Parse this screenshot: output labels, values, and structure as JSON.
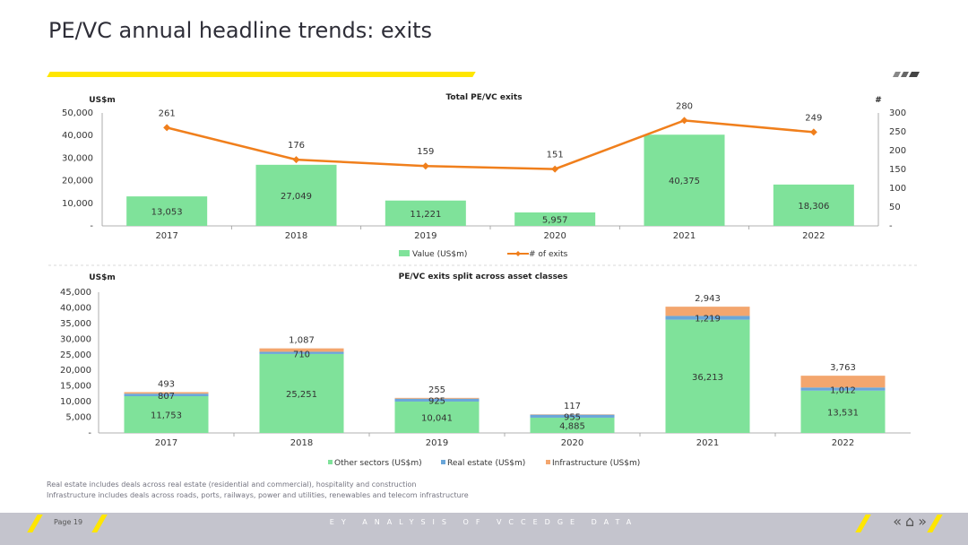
{
  "page": {
    "title": "PE/VC annual headline trends: exits",
    "footnote_1": "Real estate includes deals across real estate (residential and commercial), hospitality and construction",
    "footnote_2": "Infrastructure includes deals across roads, ports, railways, power and utilities, renewables and telecom infrastructure",
    "footer_page": "Page 19",
    "footer_center": "EY ANALYSIS OF VCCEDGE DATA",
    "nav_icons": [
      "double-left-icon",
      "home-icon",
      "double-right-icon"
    ]
  },
  "colors": {
    "yellow": "#ffe600",
    "green": "#7fe29a",
    "blue": "#6aa6d9",
    "orange": "#f3a66e",
    "line": "#f07f1c"
  },
  "chart_data": [
    {
      "type": "bar",
      "title": "Total PE/VC exits",
      "ylabel": "US$m",
      "y2label": "#",
      "categories": [
        "2017",
        "2018",
        "2019",
        "2020",
        "2021",
        "2022"
      ],
      "ylim": [
        0,
        50000
      ],
      "y_ticks": [
        "50,000",
        "40,000",
        "30,000",
        "20,000",
        "10,000",
        "-"
      ],
      "y2lim": [
        0,
        300
      ],
      "y2_ticks": [
        "300",
        "250",
        "200",
        "150",
        "100",
        "50",
        "-"
      ],
      "series": [
        {
          "name": "Value (US$m)",
          "type": "bar",
          "values": [
            13053,
            27049,
            11221,
            5957,
            40375,
            18306
          ],
          "labels": [
            "13,053",
            "27,049",
            "11,221",
            "5,957",
            "40,375",
            "18,306"
          ]
        },
        {
          "name": "# of exits",
          "type": "line",
          "axis": "secondary",
          "values": [
            261,
            176,
            159,
            151,
            280,
            249
          ],
          "labels": [
            "261",
            "176",
            "159",
            "151",
            "280",
            "249"
          ]
        }
      ],
      "legend": "bottom"
    },
    {
      "type": "bar",
      "stacked": true,
      "title": "PE/VC exits split across asset classes",
      "ylabel": "US$m",
      "categories": [
        "2017",
        "2018",
        "2019",
        "2020",
        "2021",
        "2022"
      ],
      "ylim": [
        0,
        45000
      ],
      "y_ticks": [
        "45,000",
        "40,000",
        "35,000",
        "30,000",
        "25,000",
        "20,000",
        "15,000",
        "10,000",
        "5,000",
        "-"
      ],
      "series": [
        {
          "name": "Other sectors (US$m)",
          "values": [
            11753,
            25251,
            10041,
            4885,
            36213,
            13531
          ],
          "labels": [
            "11,753",
            "25,251",
            "10,041",
            "4,885",
            "36,213",
            "13,531"
          ]
        },
        {
          "name": "Real estate (US$m)",
          "values": [
            807,
            710,
            925,
            955,
            1219,
            1012
          ],
          "labels": [
            "807",
            "710",
            "925",
            "955",
            "1,219",
            "1,012"
          ]
        },
        {
          "name": "Infrastructure (US$m)",
          "values": [
            493,
            1087,
            255,
            117,
            2943,
            3763
          ],
          "labels": [
            "493",
            "1,087",
            "255",
            "117",
            "2,943",
            "3,763"
          ]
        }
      ],
      "legend": "bottom"
    }
  ]
}
